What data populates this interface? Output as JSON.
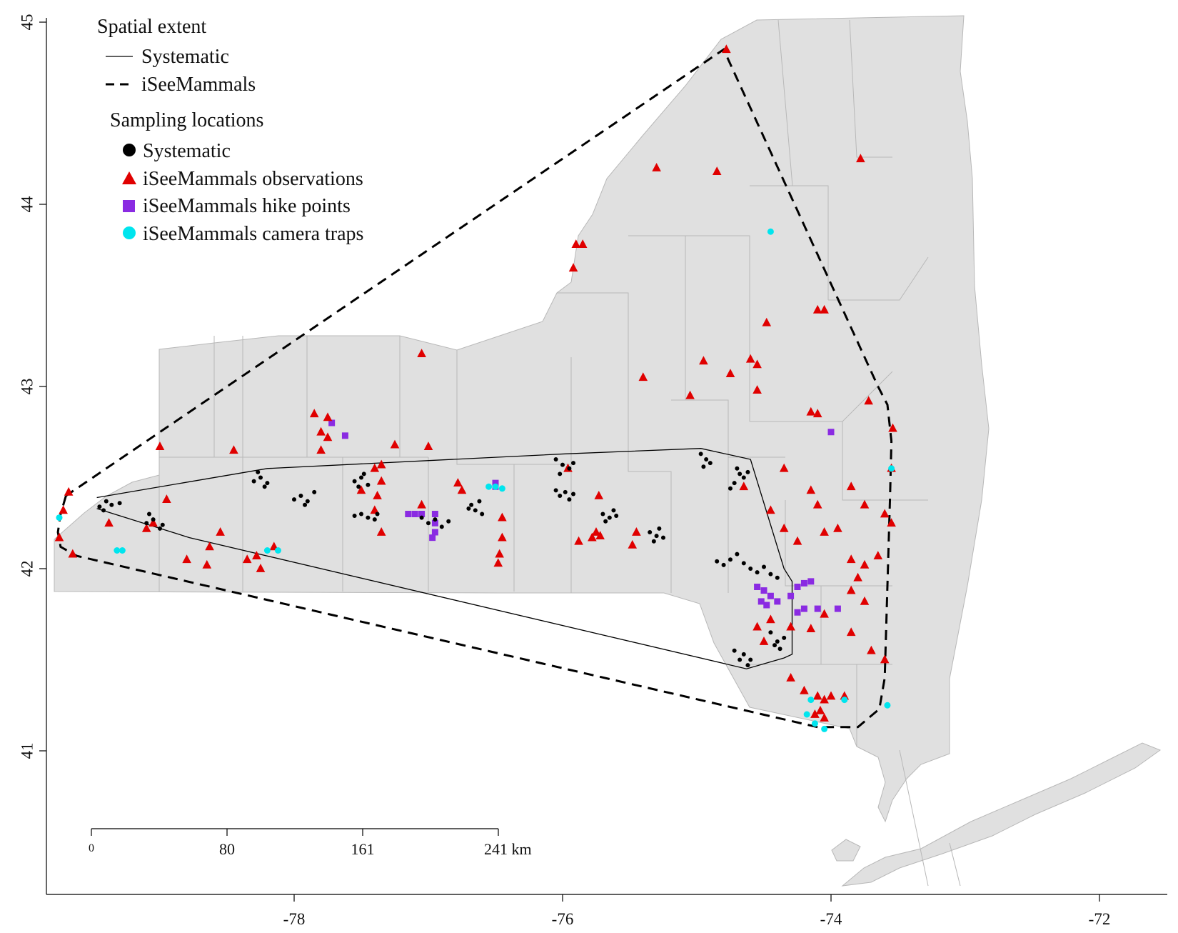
{
  "legend": {
    "extent_title": "Spatial extent",
    "extent_items": [
      {
        "label": "Systematic",
        "style": "solid"
      },
      {
        "label": "iSeeMammals",
        "style": "dashed"
      }
    ],
    "locations_title": "Sampling locations",
    "location_items": [
      {
        "label": "Systematic",
        "symbol": "circle",
        "color": "#000000"
      },
      {
        "label": "iSeeMammals observations",
        "symbol": "triangle",
        "color": "#e00000"
      },
      {
        "label": "iSeeMammals hike points",
        "symbol": "square",
        "color": "#8a2be2"
      },
      {
        "label": "iSeeMammals camera traps",
        "symbol": "circle",
        "color": "#00e5ee"
      }
    ]
  },
  "scale_bar": {
    "labels": [
      "0",
      "80",
      "161",
      "241 km"
    ]
  },
  "colors": {
    "land": "#e0e0e0",
    "county_border": "#b0b0b0",
    "observation": "#e00000",
    "hike": "#8a2be2",
    "camera": "#00e5ee",
    "systematic": "#000000"
  },
  "chart_data": {
    "type": "scatter",
    "title": "",
    "xlabel": "",
    "ylabel": "",
    "x_ticks": [
      "-78",
      "-76",
      "-74",
      "-72"
    ],
    "y_ticks": [
      "41",
      "42",
      "43",
      "44",
      "45"
    ],
    "xlim": [
      -80.8,
      -71.9
    ],
    "ylim": [
      40.5,
      45.1
    ],
    "extents": {
      "Systematic": [
        [
          -79.47,
          42.39
        ],
        [
          -78.2,
          42.55
        ],
        [
          -75.98,
          42.63
        ],
        [
          -74.97,
          42.66
        ],
        [
          -74.6,
          42.6
        ],
        [
          -74.35,
          42.0
        ],
        [
          -74.29,
          41.93
        ],
        [
          -74.29,
          41.53
        ],
        [
          -74.35,
          41.51
        ],
        [
          -74.63,
          41.45
        ],
        [
          -78.78,
          42.17
        ],
        [
          -79.47,
          42.33
        ]
      ],
      "iSeeMammals": [
        [
          -79.7,
          42.4
        ],
        [
          -79.74,
          42.3
        ],
        [
          -79.76,
          42.2
        ],
        [
          -79.74,
          42.12
        ],
        [
          -79.62,
          42.07
        ],
        [
          -74.1,
          41.13
        ],
        [
          -73.8,
          41.13
        ],
        [
          -73.64,
          41.23
        ],
        [
          -73.6,
          41.4
        ],
        [
          -73.56,
          42.4
        ],
        [
          -73.55,
          42.7
        ],
        [
          -73.58,
          42.9
        ],
        [
          -73.65,
          43.0
        ],
        [
          -74.8,
          44.85
        ],
        [
          -79.7,
          42.4
        ]
      ]
    },
    "series": [
      {
        "name": "Systematic",
        "points": [
          [
            -79.45,
            42.34
          ],
          [
            -79.4,
            42.37
          ],
          [
            -79.36,
            42.35
          ],
          [
            -79.3,
            42.36
          ],
          [
            -79.42,
            42.32
          ],
          [
            -79.1,
            42.25
          ],
          [
            -79.05,
            42.27
          ],
          [
            -79.0,
            42.22
          ],
          [
            -78.98,
            42.24
          ],
          [
            -79.08,
            42.3
          ],
          [
            -78.3,
            42.48
          ],
          [
            -78.25,
            42.5
          ],
          [
            -78.22,
            42.45
          ],
          [
            -78.27,
            42.53
          ],
          [
            -78.2,
            42.47
          ],
          [
            -78.0,
            42.38
          ],
          [
            -77.95,
            42.4
          ],
          [
            -77.9,
            42.37
          ],
          [
            -77.85,
            42.42
          ],
          [
            -77.92,
            42.35
          ],
          [
            -77.55,
            42.48
          ],
          [
            -77.5,
            42.5
          ],
          [
            -77.45,
            42.46
          ],
          [
            -77.52,
            42.45
          ],
          [
            -77.48,
            42.52
          ],
          [
            -77.5,
            42.3
          ],
          [
            -77.45,
            42.28
          ],
          [
            -77.4,
            42.27
          ],
          [
            -77.38,
            42.3
          ],
          [
            -77.55,
            42.29
          ],
          [
            -77.0,
            42.25
          ],
          [
            -76.95,
            42.27
          ],
          [
            -76.9,
            42.23
          ],
          [
            -76.85,
            42.26
          ],
          [
            -77.05,
            42.28
          ],
          [
            -76.68,
            42.35
          ],
          [
            -76.65,
            42.32
          ],
          [
            -76.62,
            42.37
          ],
          [
            -76.6,
            42.3
          ],
          [
            -76.7,
            42.33
          ],
          [
            -76.05,
            42.6
          ],
          [
            -76.0,
            42.57
          ],
          [
            -75.95,
            42.55
          ],
          [
            -76.02,
            42.52
          ],
          [
            -75.92,
            42.58
          ],
          [
            -76.02,
            42.4
          ],
          [
            -75.98,
            42.42
          ],
          [
            -75.95,
            42.38
          ],
          [
            -76.05,
            42.43
          ],
          [
            -75.92,
            42.41
          ],
          [
            -75.7,
            42.3
          ],
          [
            -75.65,
            42.28
          ],
          [
            -75.62,
            42.32
          ],
          [
            -75.68,
            42.26
          ],
          [
            -75.6,
            42.29
          ],
          [
            -75.35,
            42.2
          ],
          [
            -75.3,
            42.18
          ],
          [
            -75.28,
            42.22
          ],
          [
            -75.25,
            42.17
          ],
          [
            -75.32,
            42.15
          ],
          [
            -74.97,
            42.63
          ],
          [
            -74.93,
            42.6
          ],
          [
            -74.9,
            42.58
          ],
          [
            -74.95,
            42.56
          ],
          [
            -74.7,
            42.55
          ],
          [
            -74.68,
            42.52
          ],
          [
            -74.65,
            42.5
          ],
          [
            -74.72,
            42.47
          ],
          [
            -74.62,
            42.53
          ],
          [
            -74.75,
            42.44
          ],
          [
            -74.85,
            42.04
          ],
          [
            -74.8,
            42.02
          ],
          [
            -74.75,
            42.05
          ],
          [
            -74.7,
            42.08
          ],
          [
            -74.65,
            42.03
          ],
          [
            -74.6,
            42.0
          ],
          [
            -74.55,
            41.98
          ],
          [
            -74.5,
            42.01
          ],
          [
            -74.45,
            41.97
          ],
          [
            -74.4,
            41.95
          ],
          [
            -74.72,
            41.55
          ],
          [
            -74.68,
            41.5
          ],
          [
            -74.65,
            41.53
          ],
          [
            -74.62,
            41.47
          ],
          [
            -74.6,
            41.5
          ],
          [
            -74.4,
            41.6
          ],
          [
            -74.38,
            41.56
          ],
          [
            -74.35,
            41.62
          ],
          [
            -74.42,
            41.58
          ],
          [
            -74.45,
            41.65
          ]
        ]
      },
      {
        "name": "iSeeMammals observations",
        "points": [
          [
            -74.78,
            44.85
          ],
          [
            -73.78,
            44.25
          ],
          [
            -75.3,
            44.2
          ],
          [
            -74.85,
            44.18
          ],
          [
            -75.85,
            43.78
          ],
          [
            -75.9,
            43.78
          ],
          [
            -75.92,
            43.65
          ],
          [
            -74.1,
            43.42
          ],
          [
            -74.05,
            43.42
          ],
          [
            -74.48,
            43.35
          ],
          [
            -77.05,
            43.18
          ],
          [
            -74.95,
            43.14
          ],
          [
            -74.6,
            43.15
          ],
          [
            -74.55,
            43.12
          ],
          [
            -75.4,
            43.05
          ],
          [
            -74.75,
            43.07
          ],
          [
            -74.55,
            42.98
          ],
          [
            -75.05,
            42.95
          ],
          [
            -73.72,
            42.92
          ],
          [
            -73.54,
            42.77
          ],
          [
            -73.55,
            42.55
          ],
          [
            -74.15,
            42.86
          ],
          [
            -74.1,
            42.85
          ],
          [
            -74.35,
            42.55
          ],
          [
            -74.15,
            42.43
          ],
          [
            -73.85,
            42.45
          ],
          [
            -73.75,
            42.35
          ],
          [
            -73.55,
            42.25
          ],
          [
            -73.6,
            42.3
          ],
          [
            -77.75,
            42.83
          ],
          [
            -77.85,
            42.85
          ],
          [
            -77.8,
            42.75
          ],
          [
            -77.75,
            42.72
          ],
          [
            -77.8,
            42.65
          ],
          [
            -78.45,
            42.65
          ],
          [
            -77.4,
            42.55
          ],
          [
            -77.35,
            42.57
          ],
          [
            -77.25,
            42.68
          ],
          [
            -77.0,
            42.67
          ],
          [
            -77.5,
            42.43
          ],
          [
            -77.38,
            42.4
          ],
          [
            -77.35,
            42.48
          ],
          [
            -77.4,
            42.32
          ],
          [
            -77.35,
            42.2
          ],
          [
            -77.05,
            42.35
          ],
          [
            -76.78,
            42.47
          ],
          [
            -76.75,
            42.43
          ],
          [
            -76.45,
            42.28
          ],
          [
            -76.45,
            42.17
          ],
          [
            -76.47,
            42.08
          ],
          [
            -76.48,
            42.03
          ],
          [
            -75.96,
            42.55
          ],
          [
            -75.73,
            42.4
          ],
          [
            -75.72,
            42.18
          ],
          [
            -75.75,
            42.2
          ],
          [
            -75.78,
            42.17
          ],
          [
            -75.88,
            42.15
          ],
          [
            -75.45,
            42.2
          ],
          [
            -75.48,
            42.13
          ],
          [
            -74.65,
            42.45
          ],
          [
            -74.45,
            42.32
          ],
          [
            -74.35,
            42.22
          ],
          [
            -74.25,
            42.15
          ],
          [
            -74.1,
            42.35
          ],
          [
            -74.05,
            42.2
          ],
          [
            -73.95,
            42.22
          ],
          [
            -73.85,
            42.05
          ],
          [
            -73.75,
            42.02
          ],
          [
            -73.65,
            42.07
          ],
          [
            -73.8,
            41.95
          ],
          [
            -73.85,
            41.88
          ],
          [
            -73.75,
            41.82
          ],
          [
            -74.05,
            41.75
          ],
          [
            -74.15,
            41.67
          ],
          [
            -74.3,
            41.68
          ],
          [
            -74.55,
            41.68
          ],
          [
            -74.5,
            41.6
          ],
          [
            -74.45,
            41.72
          ],
          [
            -74.3,
            41.4
          ],
          [
            -74.2,
            41.33
          ],
          [
            -74.1,
            41.3
          ],
          [
            -74.05,
            41.28
          ],
          [
            -74.08,
            41.22
          ],
          [
            -74.12,
            41.2
          ],
          [
            -74.05,
            41.18
          ],
          [
            -74.0,
            41.3
          ],
          [
            -73.9,
            41.3
          ],
          [
            -73.7,
            41.55
          ],
          [
            -73.6,
            41.5
          ],
          [
            -73.85,
            41.65
          ],
          [
            -78.28,
            42.07
          ],
          [
            -78.55,
            42.2
          ],
          [
            -78.63,
            42.12
          ],
          [
            -79.38,
            42.25
          ],
          [
            -79.68,
            42.42
          ],
          [
            -79.72,
            42.32
          ],
          [
            -79.75,
            42.17
          ],
          [
            -79.65,
            42.08
          ],
          [
            -78.8,
            42.05
          ],
          [
            -78.65,
            42.02
          ],
          [
            -79.05,
            42.25
          ],
          [
            -79.1,
            42.22
          ],
          [
            -78.25,
            42.0
          ],
          [
            -78.15,
            42.12
          ],
          [
            -78.35,
            42.05
          ],
          [
            -78.95,
            42.38
          ],
          [
            -79.0,
            42.67
          ]
        ]
      },
      {
        "name": "iSeeMammals hike points",
        "points": [
          [
            -77.72,
            42.8
          ],
          [
            -77.62,
            42.73
          ],
          [
            -76.5,
            42.47
          ],
          [
            -76.5,
            42.45
          ],
          [
            -74.0,
            42.75
          ],
          [
            -77.15,
            42.3
          ],
          [
            -77.1,
            42.3
          ],
          [
            -77.05,
            42.3
          ],
          [
            -76.95,
            42.3
          ],
          [
            -76.95,
            42.25
          ],
          [
            -76.95,
            42.2
          ],
          [
            -76.97,
            42.17
          ],
          [
            -74.55,
            41.9
          ],
          [
            -74.5,
            41.88
          ],
          [
            -74.45,
            41.85
          ],
          [
            -74.48,
            41.8
          ],
          [
            -74.52,
            41.82
          ],
          [
            -74.4,
            41.82
          ],
          [
            -74.3,
            41.85
          ],
          [
            -74.25,
            41.9
          ],
          [
            -74.2,
            41.92
          ],
          [
            -74.15,
            41.93
          ],
          [
            -74.2,
            41.78
          ],
          [
            -74.25,
            41.76
          ],
          [
            -74.1,
            41.78
          ],
          [
            -73.95,
            41.78
          ]
        ]
      },
      {
        "name": "iSeeMammals camera traps",
        "points": [
          [
            -74.45,
            43.85
          ],
          [
            -73.55,
            42.55
          ],
          [
            -76.55,
            42.45
          ],
          [
            -76.5,
            42.45
          ],
          [
            -76.45,
            42.44
          ],
          [
            -79.75,
            42.28
          ],
          [
            -79.32,
            42.1
          ],
          [
            -79.28,
            42.1
          ],
          [
            -78.2,
            42.1
          ],
          [
            -78.12,
            42.1
          ],
          [
            -74.15,
            41.28
          ],
          [
            -74.18,
            41.2
          ],
          [
            -74.12,
            41.15
          ],
          [
            -74.05,
            41.12
          ],
          [
            -73.9,
            41.28
          ],
          [
            -73.58,
            41.25
          ]
        ]
      }
    ]
  }
}
